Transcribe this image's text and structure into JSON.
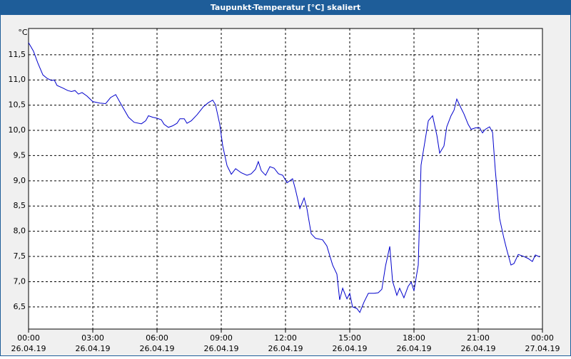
{
  "chart_data": {
    "type": "line",
    "title": "Taupunkt-Temperatur [°C] skaliert",
    "y_unit": "°C",
    "x": [
      0,
      0.23,
      0.43,
      0.67,
      0.87,
      1.07,
      1.2,
      1.33,
      1.6,
      1.83,
      2.0,
      2.17,
      2.33,
      2.5,
      2.73,
      3.0,
      3.33,
      3.6,
      3.83,
      4.07,
      4.33,
      4.67,
      4.93,
      5.27,
      5.47,
      5.6,
      5.8,
      6.0,
      6.2,
      6.33,
      6.53,
      6.73,
      6.93,
      7.07,
      7.27,
      7.4,
      7.6,
      7.87,
      8.17,
      8.4,
      8.6,
      8.73,
      8.93,
      9.07,
      9.27,
      9.47,
      9.67,
      9.93,
      10.2,
      10.4,
      10.6,
      10.73,
      10.87,
      11.07,
      11.27,
      11.47,
      11.67,
      11.87,
      12.07,
      12.2,
      12.33,
      12.47,
      12.67,
      12.87,
      13.0,
      13.2,
      13.4,
      13.73,
      13.93,
      14.2,
      14.4,
      14.53,
      14.67,
      14.87,
      15.0,
      15.13,
      15.33,
      15.47,
      15.67,
      15.87,
      16.13,
      16.33,
      16.5,
      16.67,
      16.87,
      17.0,
      17.2,
      17.33,
      17.53,
      17.73,
      17.87,
      18.0,
      18.2,
      18.33,
      18.53,
      18.67,
      18.87,
      19.07,
      19.2,
      19.4,
      19.53,
      19.73,
      19.87,
      20.0,
      20.2,
      20.33,
      20.53,
      20.67,
      20.87,
      21.07,
      21.2,
      21.33,
      21.53,
      21.67,
      21.8,
      22.0,
      22.2,
      22.33,
      22.53,
      22.67,
      22.87,
      23.13,
      23.33,
      23.53,
      23.67,
      23.87
    ],
    "series": [
      {
        "color": "#0000cc",
        "values": [
          11.74,
          11.57,
          11.34,
          11.1,
          11.03,
          10.99,
          11.0,
          10.89,
          10.84,
          10.79,
          10.77,
          10.79,
          10.72,
          10.75,
          10.68,
          10.57,
          10.54,
          10.53,
          10.65,
          10.71,
          10.51,
          10.26,
          10.16,
          10.13,
          10.19,
          10.29,
          10.26,
          10.24,
          10.21,
          10.12,
          10.06,
          10.09,
          10.14,
          10.23,
          10.23,
          10.14,
          10.19,
          10.31,
          10.47,
          10.55,
          10.6,
          10.51,
          10.12,
          9.69,
          9.3,
          9.13,
          9.24,
          9.16,
          9.11,
          9.14,
          9.23,
          9.38,
          9.2,
          9.11,
          9.28,
          9.25,
          9.14,
          9.11,
          8.96,
          9.0,
          9.04,
          8.82,
          8.45,
          8.66,
          8.45,
          7.95,
          7.86,
          7.83,
          7.71,
          7.33,
          7.15,
          6.64,
          6.87,
          6.66,
          6.77,
          6.5,
          6.47,
          6.39,
          6.6,
          6.77,
          6.77,
          6.78,
          6.85,
          7.31,
          7.7,
          7.01,
          6.73,
          6.87,
          6.68,
          6.91,
          6.99,
          6.82,
          7.33,
          9.31,
          9.83,
          10.19,
          10.29,
          9.9,
          9.55,
          9.69,
          10.07,
          10.29,
          10.4,
          10.62,
          10.44,
          10.33,
          10.12,
          10.02,
          10.05,
          10.05,
          9.95,
          10.02,
          10.07,
          9.96,
          9.2,
          8.25,
          7.86,
          7.64,
          7.33,
          7.36,
          7.54,
          7.5,
          7.46,
          7.4,
          7.53,
          7.49
        ]
      }
    ],
    "xlim": [
      0,
      24
    ],
    "ylim": [
      6.06,
      12.02
    ],
    "xticks": [
      {
        "value": 0,
        "label": "00:00",
        "date": "26.04.19"
      },
      {
        "value": 3,
        "label": "03:00",
        "date": "26.04.19"
      },
      {
        "value": 6,
        "label": "06:00",
        "date": "26.04.19"
      },
      {
        "value": 9,
        "label": "09:00",
        "date": "26.04.19"
      },
      {
        "value": 12,
        "label": "12:00",
        "date": "26.04.19"
      },
      {
        "value": 15,
        "label": "15:00",
        "date": "26.04.19"
      },
      {
        "value": 18,
        "label": "18:00",
        "date": "26.04.19"
      },
      {
        "value": 21,
        "label": "21:00",
        "date": "26.04.19"
      },
      {
        "value": 24,
        "label": "00:00",
        "date": "27.04.19"
      }
    ],
    "yticks": [
      {
        "value": 6.5,
        "label": "6,5"
      },
      {
        "value": 7.0,
        "label": "7,0"
      },
      {
        "value": 7.5,
        "label": "7,5"
      },
      {
        "value": 8.0,
        "label": "8,0"
      },
      {
        "value": 8.5,
        "label": "8,5"
      },
      {
        "value": 9.0,
        "label": "9,0"
      },
      {
        "value": 9.5,
        "label": "9,5"
      },
      {
        "value": 10.0,
        "label": "10,0"
      },
      {
        "value": 10.5,
        "label": "10,5"
      },
      {
        "value": 11.0,
        "label": "11,0"
      },
      {
        "value": 11.5,
        "label": "11,5"
      }
    ],
    "grid": true
  }
}
